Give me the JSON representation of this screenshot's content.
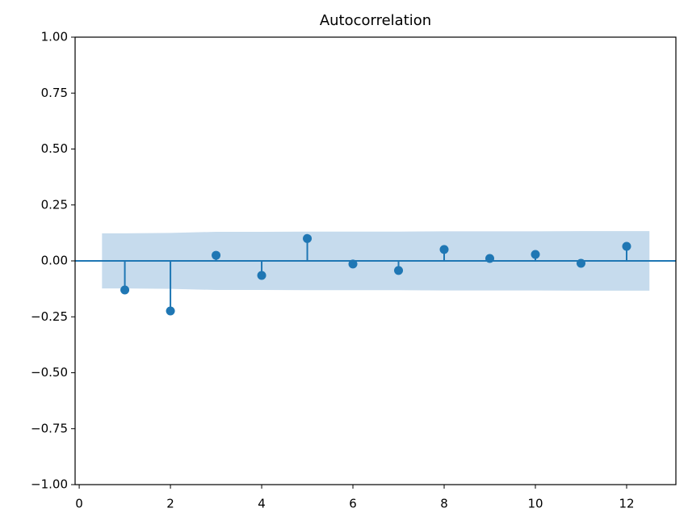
{
  "chart_data": {
    "type": "stem",
    "title": "Autocorrelation",
    "x": [
      1,
      2,
      3,
      4,
      5,
      6,
      7,
      8,
      9,
      10,
      11,
      12
    ],
    "values": [
      -0.13,
      -0.224,
      0.025,
      -0.065,
      0.1,
      -0.014,
      -0.043,
      0.051,
      0.011,
      0.029,
      -0.011,
      0.065
    ],
    "color": "#1f77b4",
    "band": {
      "color": "#c6dbed",
      "x": [
        0.5,
        1,
        2,
        3,
        4,
        5,
        6,
        7,
        8,
        9,
        10,
        11,
        12,
        12.5
      ],
      "upper": [
        0.123,
        0.123,
        0.125,
        0.13,
        0.13,
        0.131,
        0.131,
        0.131,
        0.132,
        0.132,
        0.132,
        0.133,
        0.133,
        0.133
      ],
      "lower": [
        -0.123,
        -0.123,
        -0.125,
        -0.13,
        -0.13,
        -0.131,
        -0.131,
        -0.131,
        -0.132,
        -0.132,
        -0.132,
        -0.133,
        -0.133,
        -0.133
      ]
    },
    "xlim": [
      -0.09,
      13.08
    ],
    "ylim": [
      -1,
      1
    ],
    "xticks": [
      0,
      2,
      4,
      6,
      8,
      10,
      12
    ],
    "yticks": [
      {
        "value": -1,
        "label": "−1.00"
      },
      {
        "value": -0.75,
        "label": "−0.75"
      },
      {
        "value": -0.5,
        "label": "−0.50"
      },
      {
        "value": -0.25,
        "label": "−0.25"
      },
      {
        "value": 0,
        "label": "0.00"
      },
      {
        "value": 0.25,
        "label": "0.25"
      },
      {
        "value": 0.5,
        "label": "0.50"
      },
      {
        "value": 0.75,
        "label": "0.75"
      },
      {
        "value": 1,
        "label": "1.00"
      }
    ],
    "zero_line": 0
  }
}
